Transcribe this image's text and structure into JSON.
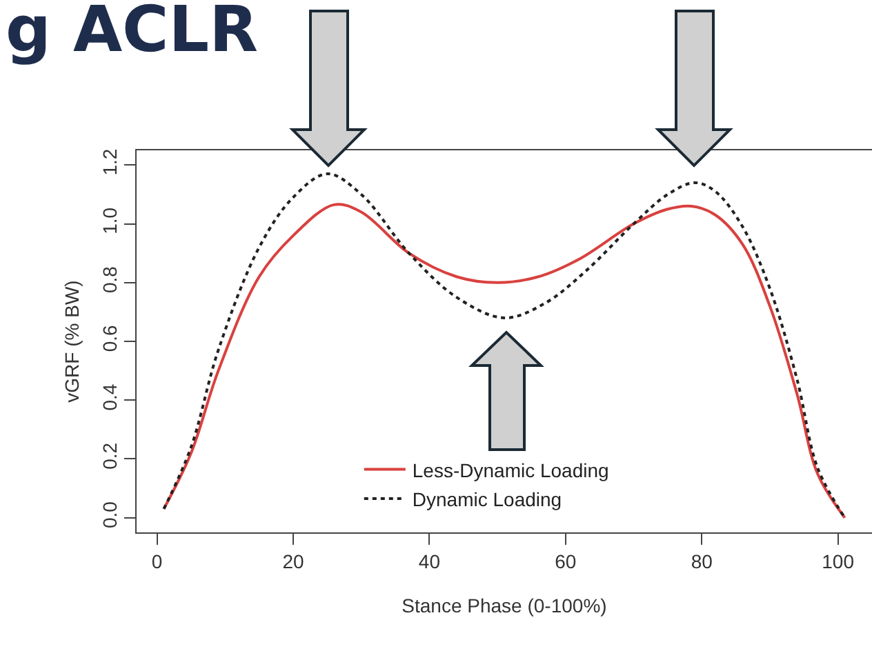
{
  "chart_data": {
    "type": "line",
    "title": "g ACLR",
    "xlabel": "Stance Phase (0-100%)",
    "ylabel": "vGRF (% BW)",
    "xlim": [
      -3,
      105
    ],
    "xticks": [
      0,
      20,
      40,
      60,
      80,
      100
    ],
    "ylim": [
      -0.05,
      1.25
    ],
    "yticks": [
      {
        "value": 0,
        "label": "0.0"
      },
      {
        "value": 0.2,
        "label": "0.2"
      },
      {
        "value": 0.4,
        "label": "0.4"
      },
      {
        "value": 0.6,
        "label": "0.6"
      },
      {
        "value": 0.8,
        "label": "0.8"
      },
      {
        "value": 1,
        "label": "1.0"
      },
      {
        "value": 1.2,
        "label": "1.2"
      }
    ],
    "grid": false,
    "legend": "bottom",
    "marker": "none",
    "series": [
      {
        "name": "Less-Dynamic Loading",
        "color": "#d9413f",
        "line_style": "solid",
        "x": [
          1,
          5,
          9,
          15,
          20,
          26,
          30,
          37,
          44,
          50,
          56,
          62,
          70,
          75,
          78.5,
          82,
          86,
          90,
          94,
          97,
          101
        ],
        "values": [
          0.03,
          0.22,
          0.5,
          0.82,
          0.96,
          1.065,
          1.04,
          0.9,
          0.82,
          0.8,
          0.82,
          0.88,
          1.0,
          1.05,
          1.06,
          1.03,
          0.93,
          0.72,
          0.42,
          0.15,
          0.0
        ]
      },
      {
        "name": "Dynamic Loading",
        "color": "#222222",
        "line_style": "dotted",
        "x": [
          1,
          5,
          9,
          15,
          20,
          25,
          30,
          37,
          44,
          51,
          57,
          63,
          70,
          75,
          79,
          82,
          86,
          90,
          94,
          97,
          101
        ],
        "values": [
          0.03,
          0.24,
          0.57,
          0.92,
          1.09,
          1.17,
          1.1,
          0.9,
          0.75,
          0.68,
          0.73,
          0.84,
          1.0,
          1.1,
          1.14,
          1.11,
          0.99,
          0.78,
          0.47,
          0.17,
          0.0
        ]
      }
    ]
  }
}
